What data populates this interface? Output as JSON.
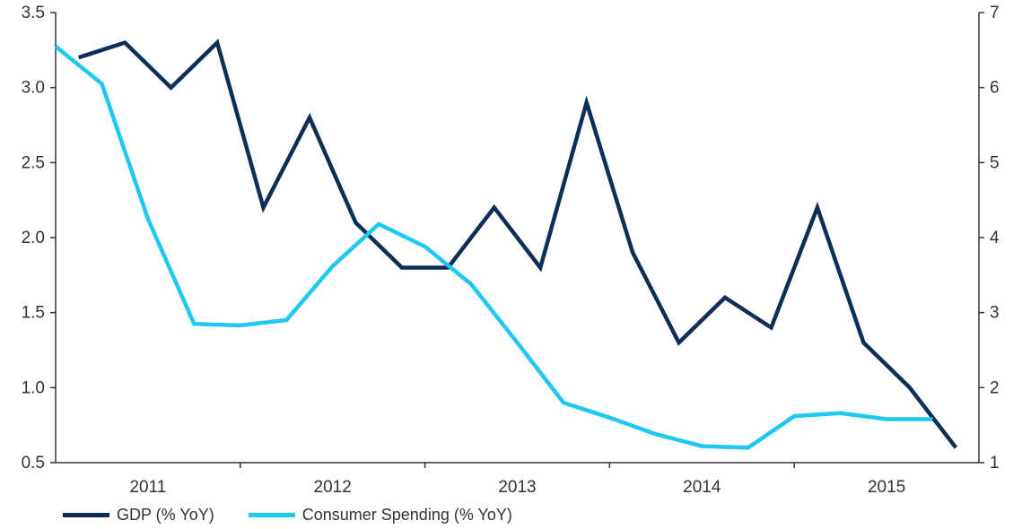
{
  "chart_data": {
    "type": "line",
    "x": [
      1,
      2,
      3,
      4,
      5,
      6,
      7,
      8,
      9,
      10,
      11,
      12,
      13,
      14,
      15,
      16,
      17,
      18,
      19,
      20
    ],
    "x_tick_labels": [
      "2011",
      "2012",
      "2013",
      "2014",
      "2015"
    ],
    "y_left_ticks": [
      "0.5",
      "1.0",
      "1.5",
      "2.0",
      "2.5",
      "3.0",
      "3.5"
    ],
    "y_right_ticks": [
      "1",
      "2",
      "3",
      "4",
      "5",
      "6",
      "7"
    ],
    "ylim_left": [
      0.5,
      3.5
    ],
    "ylim_right": [
      1,
      7
    ],
    "grid": false,
    "legend_position": "bottom-left",
    "series": [
      {
        "name": "GDP (% YoY)",
        "axis": "left",
        "color": "#0d2f57",
        "x": [
          1,
          2,
          3,
          4,
          5,
          6,
          7,
          8,
          9,
          10,
          11,
          12,
          13,
          14,
          15,
          16,
          17,
          18,
          19,
          20
        ],
        "values": [
          3.2,
          3.3,
          3.0,
          3.3,
          2.2,
          2.8,
          2.1,
          1.8,
          1.8,
          2.2,
          1.8,
          2.9,
          1.9,
          1.3,
          1.6,
          1.4,
          2.2,
          1.3,
          1.0,
          0.6
        ]
      },
      {
        "name": "Consumer Spending (% YoY)",
        "axis": "right",
        "color": "#1ec8f0",
        "x": [
          0.5,
          1.5,
          2.5,
          3.5,
          4.5,
          5.5,
          6.5,
          7.5,
          8.5,
          9.5,
          10.5,
          11.5,
          12.5,
          13.5,
          14.5,
          15.5,
          16.5,
          17.5,
          18.5,
          19.5
        ],
        "values": [
          6.55,
          6.05,
          4.25,
          2.85,
          2.83,
          2.9,
          3.62,
          4.18,
          3.88,
          3.38,
          2.6,
          1.8,
          1.6,
          1.38,
          1.22,
          1.2,
          1.62,
          1.66,
          1.58,
          1.58
        ]
      }
    ]
  }
}
